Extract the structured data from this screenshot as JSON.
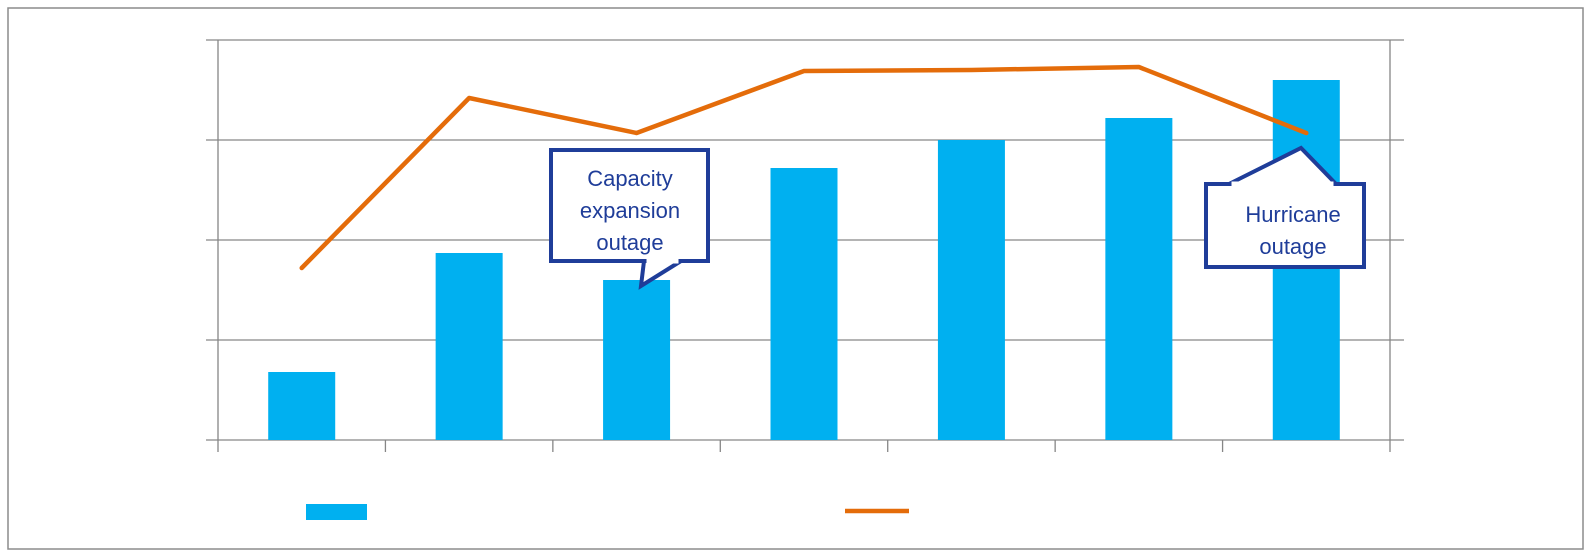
{
  "chart_data": {
    "type": "bar",
    "categories": [
      "",
      "",
      "",
      "",
      "",
      "",
      ""
    ],
    "series": [
      {
        "kind": "bar",
        "color": "#00b0f0",
        "values": [
          0.68,
          1.87,
          1.6,
          2.72,
          3.0,
          3.22,
          3.6
        ]
      },
      {
        "kind": "line",
        "color": "#e46c0a",
        "values": [
          1.72,
          3.42,
          3.07,
          3.69,
          3.7,
          3.73,
          3.07
        ]
      }
    ],
    "ylim": [
      0,
      4
    ],
    "y_gridlines": [
      0,
      1,
      2,
      3,
      4
    ],
    "grid": true,
    "legend_position": "bottom",
    "callouts": [
      {
        "category_index": 2,
        "text": [
          "Capacity",
          "expansion",
          "outage"
        ]
      },
      {
        "category_index": 6,
        "text": [
          "Hurricane",
          "outage"
        ]
      }
    ]
  },
  "colors": {
    "bar": "#00b0f0",
    "line": "#e46c0a",
    "callout_border": "#1f3d99",
    "callout_text": "#1f3d99",
    "grid": "#868686",
    "frame": "#8c8c8c"
  }
}
